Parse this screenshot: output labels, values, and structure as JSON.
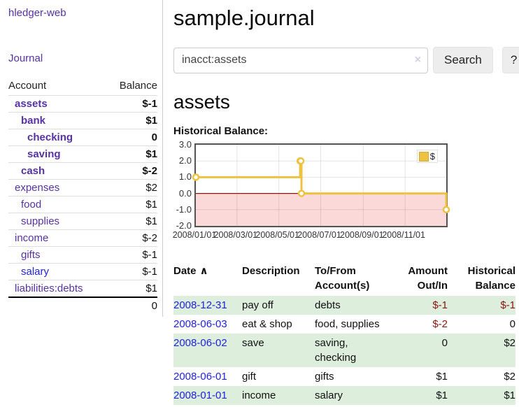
{
  "app": {
    "title": "hledger-web"
  },
  "palette": {
    "link_purple": "#5731a5",
    "link_blue": "#2222dd",
    "negative_strong": "#7e1510",
    "negative_muted": "#c07f7c",
    "table_negative": "#8b1510",
    "row_green": "#ddeedd",
    "button_bg": "#ededed"
  },
  "sidebar": {
    "journal_label": "Journal",
    "table": {
      "account_header": "Account",
      "balance_header": "Balance",
      "rows": [
        {
          "account": "assets",
          "balance": "$-1"
        },
        {
          "account": "bank",
          "balance": "$1"
        },
        {
          "account": "checking",
          "balance": "0"
        },
        {
          "account": "saving",
          "balance": "$1"
        },
        {
          "account": "cash",
          "balance": "$-2"
        },
        {
          "account": "expenses",
          "balance": "$2"
        },
        {
          "account": "food",
          "balance": "$1"
        },
        {
          "account": "supplies",
          "balance": "$1"
        },
        {
          "account": "income",
          "balance": "$-2"
        },
        {
          "account": "gifts",
          "balance": "$-1"
        },
        {
          "account": "salary",
          "balance": "$-1"
        },
        {
          "account": "liabilities:debts",
          "balance": "$1"
        }
      ],
      "total": "0"
    }
  },
  "main": {
    "title": "sample.journal",
    "search": {
      "value": "inacct:assets",
      "clear_icon": "×",
      "search_button": "Search",
      "help_button": "?"
    },
    "account_heading": "assets"
  },
  "chart_data": {
    "type": "line",
    "title": "Historical Balance:",
    "step": true,
    "ylim": [
      -2,
      3
    ],
    "yticks": [
      {
        "label": "3.0",
        "value": 3
      },
      {
        "label": "2.0",
        "value": 2
      },
      {
        "label": "1.0",
        "value": 1
      },
      {
        "label": "0.0",
        "value": 0
      },
      {
        "label": "-1.0",
        "value": -1
      },
      {
        "label": "-2.0",
        "value": -2
      }
    ],
    "xticks": [
      {
        "label": "2008/01/01",
        "day": 0
      },
      {
        "label": "2008/03/01",
        "day": 60
      },
      {
        "label": "2008/05/01",
        "day": 121
      },
      {
        "label": "2008/07/01",
        "day": 182
      },
      {
        "label": "2008/09/01",
        "day": 244
      },
      {
        "label": "2008/11/01",
        "day": 305
      }
    ],
    "xmax_day": 365,
    "grid": true,
    "negative_fill": "#fbd9d9",
    "zero_line_color": "#8b1515",
    "legend": {
      "label": "$",
      "swatch_color": "#edc240",
      "swatch_border": "#d8a938",
      "position": "top-right"
    },
    "series": [
      {
        "name": "$",
        "color": "#edc240",
        "points": [
          {
            "date": "2008-01-01",
            "day": 0,
            "value": 1
          },
          {
            "date": "2008-06-01",
            "day": 152,
            "value": 2
          },
          {
            "date": "2008-06-02",
            "day": 153,
            "value": 2
          },
          {
            "date": "2008-06-03",
            "day": 154,
            "value": 0
          },
          {
            "date": "2008-12-31",
            "day": 365,
            "value": -1
          }
        ]
      }
    ]
  },
  "register": {
    "headers": {
      "date": "Date",
      "description": "Description",
      "account": "To/From Account(s)",
      "amount": "Amount Out/In",
      "balance": "Historical Balance"
    },
    "sort_indicator": "∧",
    "rows": [
      {
        "date": "2008-12-31",
        "description": "pay off",
        "accounts": "debts",
        "amount": "$-1",
        "balance": "$-1"
      },
      {
        "date": "2008-06-03",
        "description": "eat & shop",
        "accounts": "food, supplies",
        "amount": "$-2",
        "balance": "0"
      },
      {
        "date": "2008-06-02",
        "description": "save",
        "accounts": "saving, checking",
        "amount": "0",
        "balance": "$2"
      },
      {
        "date": "2008-06-01",
        "description": "gift",
        "accounts": "gifts",
        "amount": "$1",
        "balance": "$2"
      },
      {
        "date": "2008-01-01",
        "description": "income",
        "accounts": "salary",
        "amount": "$1",
        "balance": "$1"
      }
    ]
  }
}
